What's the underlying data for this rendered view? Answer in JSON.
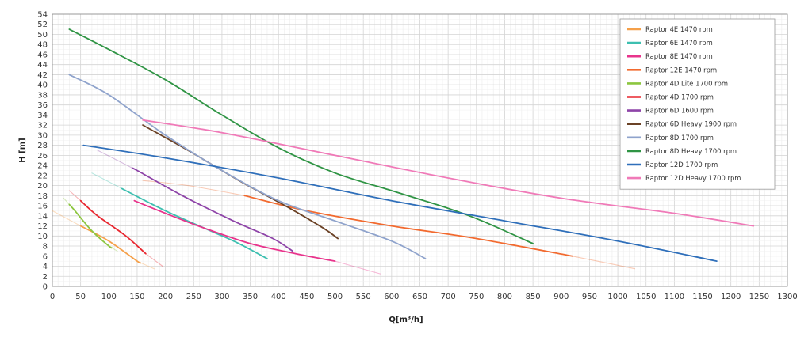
{
  "chart_data": {
    "type": "line",
    "title": "",
    "xlabel": "Q[m³/h]",
    "ylabel": "H [m]",
    "xlim": [
      0,
      1300
    ],
    "ylim": [
      0,
      54
    ],
    "x_ticks": [
      0,
      50,
      100,
      150,
      200,
      250,
      300,
      350,
      400,
      450,
      500,
      550,
      600,
      650,
      700,
      750,
      800,
      850,
      900,
      950,
      1000,
      1050,
      1100,
      1150,
      1200,
      1250,
      1300
    ],
    "y_ticks": [
      0,
      2,
      4,
      6,
      8,
      10,
      12,
      14,
      16,
      18,
      20,
      22,
      24,
      26,
      28,
      30,
      32,
      34,
      36,
      38,
      40,
      42,
      44,
      46,
      48,
      50,
      52,
      54
    ],
    "x_tick_labels": [
      "0",
      "50",
      "100",
      "150",
      "200",
      "250",
      "300",
      "350",
      "400",
      "450",
      "500",
      "550",
      "600",
      "650",
      "700",
      "750",
      "800",
      "850",
      "900",
      "950",
      "1000",
      "1050",
      "1100",
      "1150",
      "1200",
      "1250",
      "1300"
    ],
    "y_tick_labels": [
      "0",
      "2",
      "4",
      "6",
      "8",
      "10",
      "12",
      "14",
      "16",
      "18",
      "20",
      "22",
      "24",
      "26",
      "28",
      "30",
      "32",
      "34",
      "36",
      "38",
      "40",
      "42",
      "44",
      "46",
      "48",
      "50",
      "52",
      "54"
    ],
    "grid": true,
    "legend_position": "top-right",
    "series": [
      {
        "name": "Raptor 4E 1470 rpm",
        "color": "#f5a04a",
        "x": [
          0,
          50,
          100,
          150,
          180
        ],
        "y": [
          15,
          12,
          9,
          5,
          3.5
        ],
        "dim_before": 50,
        "dim_after": 155
      },
      {
        "name": "Raptor 6E 1470 rpm",
        "color": "#3dbfb0",
        "x": [
          70,
          130,
          200,
          280,
          330,
          380
        ],
        "y": [
          22.5,
          19,
          15,
          11,
          8.5,
          5.5
        ],
        "dim_before": 125,
        "dim_after": 380
      },
      {
        "name": "Raptor 8E 1470 rpm",
        "color": "#e8348c",
        "x": [
          145,
          200,
          270,
          350,
          430,
          500,
          580
        ],
        "y": [
          17,
          14.5,
          11.5,
          8.5,
          6.5,
          5,
          2.5
        ],
        "dim_before": 145,
        "dim_after": 500
      },
      {
        "name": "Raptor 12E 1470 rpm",
        "color": "#f26a2f",
        "x": [
          160,
          240,
          340,
          450,
          600,
          750,
          920,
          1030
        ],
        "y": [
          21,
          20,
          18,
          15,
          12,
          9.5,
          6,
          3.5
        ],
        "dim_before": 340,
        "dim_after": 920
      },
      {
        "name": "Raptor 4D Lite 1700 rpm",
        "color": "#8cc63f",
        "x": [
          20,
          40,
          70,
          100,
          115
        ],
        "y": [
          17.5,
          15,
          11,
          8,
          7
        ],
        "dim_before": 30,
        "dim_after": 105
      },
      {
        "name": "Raptor 4D 1700 rpm",
        "color": "#e8262f",
        "x": [
          30,
          80,
          130,
          165,
          195
        ],
        "y": [
          19,
          14,
          10,
          6.5,
          4
        ],
        "dim_before": 50,
        "dim_after": 165
      },
      {
        "name": "Raptor 6D 1600 rpm",
        "color": "#8e44a8",
        "x": [
          80,
          150,
          230,
          320,
          390,
          425
        ],
        "y": [
          27,
          23,
          18,
          13,
          9.5,
          7
        ],
        "dim_before": 145,
        "dim_after": 425
      },
      {
        "name": "Raptor 6D Heavy 1900 rpm",
        "color": "#6b4226",
        "x": [
          160,
          240,
          330,
          420,
          480,
          505
        ],
        "y": [
          32,
          27,
          21,
          15.5,
          11.5,
          9.5
        ],
        "dim_before": 160,
        "dim_after": 505
      },
      {
        "name": "Raptor 8D 1700 rpm",
        "color": "#8fa3cc",
        "x": [
          30,
          100,
          200,
          300,
          400,
          500,
          600,
          660
        ],
        "y": [
          42,
          38,
          30,
          23,
          17,
          13,
          9,
          5.5
        ],
        "dim_before": 0,
        "dim_after": 660
      },
      {
        "name": "Raptor 8D Heavy 1700 rpm",
        "color": "#2f9444",
        "x": [
          30,
          100,
          200,
          300,
          400,
          500,
          600,
          700,
          760,
          850
        ],
        "y": [
          51,
          47,
          41,
          34,
          27.5,
          22.5,
          19,
          15.5,
          13,
          8.5
        ],
        "dim_before": 0,
        "dim_after": 850
      },
      {
        "name": "Raptor 12D 1700 rpm",
        "color": "#2f6fba",
        "x": [
          55,
          200,
          400,
          600,
          800,
          1000,
          1175
        ],
        "y": [
          28,
          25.5,
          21.5,
          17,
          13,
          9,
          5
        ],
        "dim_before": 0,
        "dim_after": 1175
      },
      {
        "name": "Raptor 12D Heavy 1700 rpm",
        "color": "#f07ab8",
        "x": [
          160,
          300,
          500,
          700,
          900,
          1100,
          1240
        ],
        "y": [
          33,
          30.5,
          26,
          21.5,
          17.5,
          14.5,
          12
        ],
        "dim_before": 0,
        "dim_after": 1240
      }
    ]
  }
}
